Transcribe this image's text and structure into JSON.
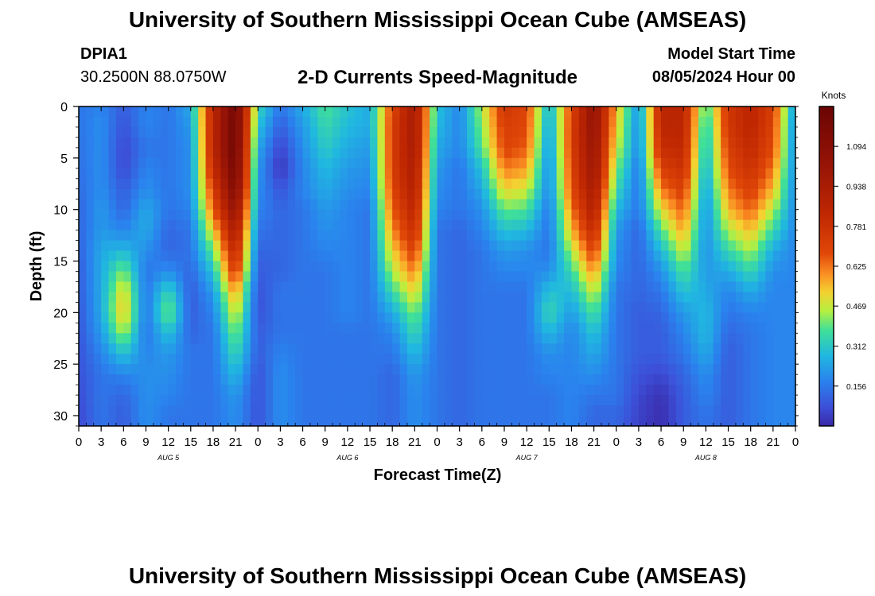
{
  "page_title": "University of Southern Mississippi Ocean Cube (AMSEAS)",
  "footer_title": "University of Southern Mississippi Ocean Cube (AMSEAS)",
  "station": {
    "id": "DPIA1",
    "coordinates": "30.2500N  88.0750W"
  },
  "model": {
    "label": "Model Start Time",
    "start": "08/05/2024 Hour 00"
  },
  "chart_data": {
    "type": "heatmap",
    "title": "2-D Currents Speed-Magnitude",
    "xlabel": "Forecast Time(Z)",
    "ylabel": "Depth (ft)",
    "x_range_hours": [
      0,
      96
    ],
    "y_range_ft": [
      0,
      31
    ],
    "x_tick_labels": [
      "0",
      "3",
      "6",
      "9",
      "12",
      "15",
      "18",
      "21",
      "0",
      "3",
      "6",
      "9",
      "12",
      "15",
      "18",
      "21",
      "0",
      "3",
      "6",
      "9",
      "12",
      "15",
      "18",
      "21",
      "0",
      "3",
      "6",
      "9",
      "12",
      "15",
      "18",
      "21",
      "0"
    ],
    "y_ticks": [
      0,
      5,
      10,
      15,
      20,
      25,
      30
    ],
    "y_tick_labels": [
      "0",
      "5",
      "10",
      "15",
      "20",
      "25",
      "30"
    ],
    "day_labels": [
      {
        "label": "AUG 5",
        "hour": 12
      },
      {
        "label": "AUG 6",
        "hour": 36
      },
      {
        "label": "AUG 7",
        "hour": 60
      },
      {
        "label": "AUG 8",
        "hour": 84
      }
    ],
    "colorbar": {
      "unit": "Knots",
      "min": 0.0,
      "max": 1.25,
      "ticks": [
        0.156,
        0.312,
        0.469,
        0.625,
        0.781,
        0.938,
        1.094
      ],
      "tick_labels": [
        "0.156",
        "0.312",
        "0.469",
        "0.625",
        "0.781",
        "0.938",
        "1.094"
      ]
    },
    "depth_levels_ft": [
      0,
      2,
      4,
      6,
      8,
      10,
      12,
      14,
      16,
      18,
      20,
      22,
      24,
      26,
      28,
      30
    ],
    "columns": [
      {
        "hour": 0,
        "speed": [
          0.15,
          0.15,
          0.14,
          0.14,
          0.13,
          0.12,
          0.12,
          0.11,
          0.1,
          0.1,
          0.09,
          0.09,
          0.08,
          0.08,
          0.07,
          0.06
        ]
      },
      {
        "hour": 3,
        "speed": [
          0.18,
          0.2,
          0.2,
          0.2,
          0.2,
          0.22,
          0.22,
          0.25,
          0.25,
          0.25,
          0.25,
          0.22,
          0.18,
          0.15,
          0.15,
          0.15
        ]
      },
      {
        "hour": 6,
        "speed": [
          0.1,
          0.08,
          0.06,
          0.06,
          0.1,
          0.12,
          0.18,
          0.28,
          0.42,
          0.52,
          0.55,
          0.45,
          0.3,
          0.18,
          0.12,
          0.1
        ]
      },
      {
        "hour": 9,
        "speed": [
          0.18,
          0.18,
          0.15,
          0.18,
          0.2,
          0.25,
          0.25,
          0.2,
          0.15,
          0.15,
          0.15,
          0.15,
          0.18,
          0.2,
          0.2,
          0.2
        ]
      },
      {
        "hour": 12,
        "speed": [
          0.15,
          0.15,
          0.15,
          0.15,
          0.15,
          0.15,
          0.12,
          0.12,
          0.2,
          0.35,
          0.42,
          0.3,
          0.22,
          0.2,
          0.18,
          0.15
        ]
      },
      {
        "hour": 15,
        "speed": [
          0.25,
          0.22,
          0.2,
          0.2,
          0.2,
          0.18,
          0.15,
          0.15,
          0.12,
          0.1,
          0.1,
          0.12,
          0.15,
          0.15,
          0.15,
          0.15
        ]
      },
      {
        "hour": 18,
        "speed": [
          0.85,
          0.85,
          0.85,
          0.8,
          0.72,
          0.65,
          0.52,
          0.4,
          0.3,
          0.22,
          0.18,
          0.15,
          0.15,
          0.15,
          0.15,
          0.15
        ]
      },
      {
        "hour": 21,
        "speed": [
          1.2,
          1.22,
          1.22,
          1.2,
          1.15,
          1.05,
          0.95,
          0.85,
          0.75,
          0.6,
          0.5,
          0.42,
          0.35,
          0.28,
          0.22,
          0.2
        ]
      },
      {
        "hour": 24,
        "speed": [
          0.35,
          0.3,
          0.25,
          0.22,
          0.2,
          0.18,
          0.15,
          0.12,
          0.1,
          0.08,
          0.08,
          0.1,
          0.1,
          0.08,
          0.08,
          0.08
        ]
      },
      {
        "hour": 27,
        "speed": [
          0.15,
          0.1,
          0.05,
          0.02,
          0.08,
          0.12,
          0.12,
          0.12,
          0.12,
          0.15,
          0.15,
          0.15,
          0.18,
          0.2,
          0.2,
          0.2
        ]
      },
      {
        "hour": 30,
        "speed": [
          0.25,
          0.22,
          0.2,
          0.18,
          0.18,
          0.15,
          0.15,
          0.15,
          0.15,
          0.15,
          0.15,
          0.15,
          0.15,
          0.15,
          0.15,
          0.15
        ]
      },
      {
        "hour": 33,
        "speed": [
          0.38,
          0.35,
          0.32,
          0.28,
          0.25,
          0.22,
          0.2,
          0.18,
          0.15,
          0.15,
          0.15,
          0.15,
          0.15,
          0.15,
          0.15,
          0.15
        ]
      },
      {
        "hour": 36,
        "speed": [
          0.3,
          0.28,
          0.25,
          0.22,
          0.2,
          0.18,
          0.18,
          0.18,
          0.18,
          0.18,
          0.18,
          0.15,
          0.15,
          0.15,
          0.15,
          0.15
        ]
      },
      {
        "hour": 39,
        "speed": [
          0.25,
          0.25,
          0.22,
          0.2,
          0.18,
          0.15,
          0.15,
          0.15,
          0.15,
          0.15,
          0.15,
          0.15,
          0.15,
          0.15,
          0.15,
          0.15
        ]
      },
      {
        "hour": 42,
        "speed": [
          0.7,
          0.72,
          0.72,
          0.72,
          0.7,
          0.65,
          0.6,
          0.52,
          0.45,
          0.35,
          0.25,
          0.18,
          0.15,
          0.12,
          0.12,
          0.12
        ]
      },
      {
        "hour": 45,
        "speed": [
          0.95,
          0.95,
          0.95,
          0.92,
          0.9,
          0.85,
          0.8,
          0.72,
          0.62,
          0.52,
          0.42,
          0.35,
          0.28,
          0.22,
          0.2,
          0.2
        ]
      },
      {
        "hour": 48,
        "speed": [
          0.3,
          0.28,
          0.25,
          0.22,
          0.2,
          0.18,
          0.15,
          0.15,
          0.15,
          0.15,
          0.15,
          0.15,
          0.15,
          0.15,
          0.15,
          0.15
        ]
      },
      {
        "hour": 51,
        "speed": [
          0.18,
          0.18,
          0.18,
          0.15,
          0.15,
          0.15,
          0.12,
          0.12,
          0.12,
          0.12,
          0.12,
          0.12,
          0.12,
          0.12,
          0.12,
          0.12
        ]
      },
      {
        "hour": 54,
        "speed": [
          0.45,
          0.42,
          0.38,
          0.3,
          0.25,
          0.2,
          0.18,
          0.15,
          0.15,
          0.15,
          0.15,
          0.15,
          0.15,
          0.15,
          0.15,
          0.15
        ]
      },
      {
        "hour": 57,
        "speed": [
          0.75,
          0.72,
          0.7,
          0.62,
          0.52,
          0.4,
          0.3,
          0.22,
          0.18,
          0.15,
          0.15,
          0.15,
          0.15,
          0.15,
          0.15,
          0.15
        ]
      },
      {
        "hour": 60,
        "speed": [
          0.7,
          0.68,
          0.65,
          0.58,
          0.48,
          0.38,
          0.28,
          0.2,
          0.18,
          0.15,
          0.15,
          0.15,
          0.15,
          0.15,
          0.15,
          0.15
        ]
      },
      {
        "hour": 63,
        "speed": [
          0.25,
          0.22,
          0.2,
          0.18,
          0.18,
          0.15,
          0.15,
          0.15,
          0.2,
          0.3,
          0.35,
          0.28,
          0.2,
          0.18,
          0.15,
          0.15
        ]
      },
      {
        "hour": 66,
        "speed": [
          0.7,
          0.72,
          0.72,
          0.7,
          0.68,
          0.62,
          0.55,
          0.45,
          0.35,
          0.28,
          0.22,
          0.18,
          0.18,
          0.18,
          0.18,
          0.18
        ]
      },
      {
        "hour": 69,
        "speed": [
          1.05,
          1.05,
          1.02,
          1.0,
          0.95,
          0.9,
          0.82,
          0.72,
          0.6,
          0.48,
          0.38,
          0.3,
          0.25,
          0.2,
          0.15,
          0.12
        ]
      },
      {
        "hour": 72,
        "speed": [
          0.55,
          0.52,
          0.48,
          0.42,
          0.35,
          0.28,
          0.22,
          0.2,
          0.18,
          0.15,
          0.15,
          0.15,
          0.15,
          0.15,
          0.15,
          0.12
        ]
      },
      {
        "hour": 75,
        "speed": [
          0.2,
          0.18,
          0.18,
          0.15,
          0.15,
          0.15,
          0.12,
          0.12,
          0.12,
          0.12,
          0.1,
          0.1,
          0.1,
          0.08,
          0.06,
          0.05
        ]
      },
      {
        "hour": 78,
        "speed": [
          0.85,
          0.85,
          0.8,
          0.72,
          0.62,
          0.5,
          0.38,
          0.28,
          0.2,
          0.15,
          0.12,
          0.1,
          0.1,
          0.06,
          0.02,
          0.01
        ]
      },
      {
        "hour": 81,
        "speed": [
          0.85,
          0.85,
          0.82,
          0.78,
          0.72,
          0.65,
          0.58,
          0.48,
          0.38,
          0.3,
          0.22,
          0.18,
          0.15,
          0.12,
          0.1,
          0.1
        ]
      },
      {
        "hour": 84,
        "speed": [
          0.35,
          0.3,
          0.28,
          0.25,
          0.22,
          0.2,
          0.2,
          0.2,
          0.22,
          0.25,
          0.28,
          0.28,
          0.25,
          0.2,
          0.18,
          0.15
        ]
      },
      {
        "hour": 87,
        "speed": [
          0.75,
          0.75,
          0.72,
          0.68,
          0.62,
          0.55,
          0.45,
          0.35,
          0.25,
          0.18,
          0.15,
          0.12,
          0.1,
          0.1,
          0.1,
          0.1
        ]
      },
      {
        "hour": 90,
        "speed": [
          0.85,
          0.85,
          0.82,
          0.78,
          0.72,
          0.65,
          0.55,
          0.45,
          0.35,
          0.25,
          0.18,
          0.15,
          0.15,
          0.15,
          0.15,
          0.15
        ]
      },
      {
        "hour": 93,
        "speed": [
          0.72,
          0.7,
          0.68,
          0.62,
          0.55,
          0.45,
          0.35,
          0.25,
          0.2,
          0.18,
          0.18,
          0.18,
          0.18,
          0.18,
          0.18,
          0.18
        ]
      },
      {
        "hour": 96,
        "speed": [
          0.2,
          0.18,
          0.18,
          0.18,
          0.18,
          0.18,
          0.18,
          0.18,
          0.18,
          0.18,
          0.18,
          0.18,
          0.18,
          0.18,
          0.18,
          0.18
        ]
      }
    ]
  }
}
